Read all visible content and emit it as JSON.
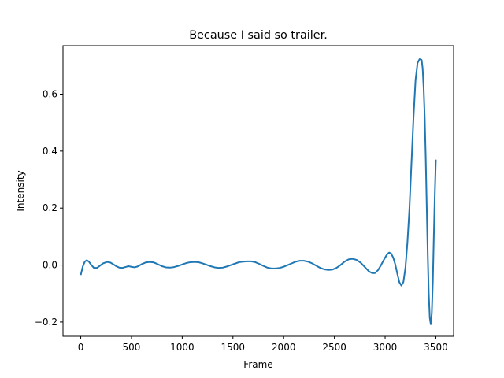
{
  "chart_data": {
    "type": "line",
    "title": "Because I said so trailer.",
    "xlabel": "Frame",
    "ylabel": "Intensity",
    "xlim": [
      -175,
      3675
    ],
    "ylim": [
      -0.25,
      0.77
    ],
    "xticks": [
      0,
      500,
      1000,
      1500,
      2000,
      2500,
      3000,
      3500
    ],
    "xtick_labels": [
      "0",
      "500",
      "1000",
      "1500",
      "2000",
      "2500",
      "3000",
      "3500"
    ],
    "yticks": [
      -0.2,
      0.0,
      0.2,
      0.4,
      0.6
    ],
    "ytick_labels": [
      "−0.2",
      "0.0",
      "0.2",
      "0.4",
      "0.6"
    ],
    "grid": false,
    "line_color": "#1f77b4",
    "series": [
      {
        "x": [
          0,
          20,
          40,
          60,
          80,
          100,
          130,
          160,
          190,
          220,
          260,
          290,
          320,
          350,
          380,
          410,
          440,
          470,
          500,
          530,
          560,
          600,
          640,
          680,
          720,
          760,
          800,
          840,
          880,
          920,
          960,
          1000,
          1040,
          1080,
          1120,
          1160,
          1200,
          1240,
          1280,
          1320,
          1360,
          1400,
          1440,
          1480,
          1520,
          1560,
          1600,
          1640,
          1680,
          1720,
          1760,
          1800,
          1840,
          1880,
          1920,
          1960,
          2000,
          2040,
          2080,
          2120,
          2160,
          2200,
          2240,
          2280,
          2320,
          2360,
          2400,
          2440,
          2480,
          2520,
          2560,
          2600,
          2640,
          2680,
          2720,
          2760,
          2800,
          2840,
          2870,
          2900,
          2930,
          2960,
          2990,
          3020,
          3040,
          3060,
          3080,
          3100,
          3120,
          3140,
          3160,
          3180,
          3200,
          3220,
          3240,
          3260,
          3280,
          3300,
          3320,
          3340,
          3360,
          3370,
          3380,
          3390,
          3400,
          3410,
          3420,
          3430,
          3440,
          3450,
          3460,
          3470,
          3480,
          3490,
          3500
        ],
        "y": [
          -0.035,
          -0.005,
          0.012,
          0.017,
          0.012,
          0.002,
          -0.01,
          -0.01,
          -0.002,
          0.006,
          0.011,
          0.009,
          0.003,
          -0.004,
          -0.009,
          -0.01,
          -0.007,
          -0.004,
          -0.006,
          -0.008,
          -0.005,
          0.003,
          0.009,
          0.011,
          0.009,
          0.003,
          -0.004,
          -0.008,
          -0.009,
          -0.007,
          -0.003,
          0.002,
          0.007,
          0.01,
          0.011,
          0.01,
          0.006,
          0.001,
          -0.004,
          -0.008,
          -0.01,
          -0.009,
          -0.005,
          0.0,
          0.005,
          0.01,
          0.012,
          0.013,
          0.013,
          0.01,
          0.004,
          -0.003,
          -0.009,
          -0.012,
          -0.012,
          -0.01,
          -0.006,
          0.0,
          0.006,
          0.012,
          0.015,
          0.015,
          0.012,
          0.006,
          -0.002,
          -0.01,
          -0.015,
          -0.017,
          -0.016,
          -0.01,
          0.0,
          0.012,
          0.02,
          0.022,
          0.018,
          0.008,
          -0.007,
          -0.022,
          -0.028,
          -0.028,
          -0.018,
          0.0,
          0.02,
          0.038,
          0.044,
          0.04,
          0.026,
          0.002,
          -0.03,
          -0.06,
          -0.072,
          -0.06,
          -0.01,
          0.08,
          0.2,
          0.36,
          0.52,
          0.65,
          0.71,
          0.723,
          0.72,
          0.69,
          0.62,
          0.52,
          0.38,
          0.21,
          0.04,
          -0.1,
          -0.185,
          -0.208,
          -0.17,
          -0.06,
          0.1,
          0.25,
          0.37
        ]
      }
    ]
  }
}
